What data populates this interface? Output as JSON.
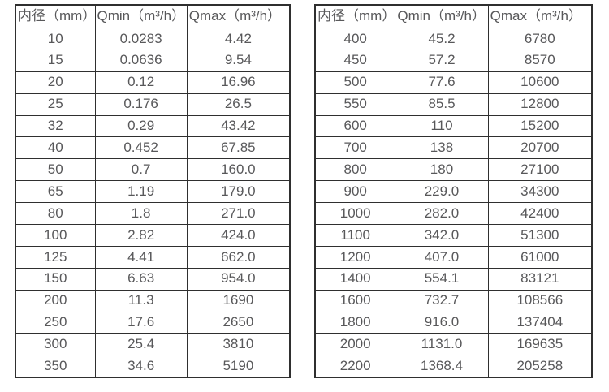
{
  "colors": {
    "background": "#ffffff",
    "border": "#2f2f2f",
    "text": "#58585a"
  },
  "tables": [
    {
      "name": "small-diameters",
      "headers": [
        "内径（mm）",
        "Qmin（m³/h）",
        "Qmax（m³/h）"
      ],
      "rows": [
        [
          "10",
          "0.0283",
          "4.42"
        ],
        [
          "15",
          "0.0636",
          "9.54"
        ],
        [
          "20",
          "0.12",
          "16.96"
        ],
        [
          "25",
          "0.176",
          "26.5"
        ],
        [
          "32",
          "0.29",
          "43.42"
        ],
        [
          "40",
          "0.452",
          "67.85"
        ],
        [
          "50",
          "0.7",
          "160.0"
        ],
        [
          "65",
          "1.19",
          "179.0"
        ],
        [
          "80",
          "1.8",
          "271.0"
        ],
        [
          "100",
          "2.82",
          "424.0"
        ],
        [
          "125",
          "4.41",
          "662.0"
        ],
        [
          "150",
          "6.63",
          "954.0"
        ],
        [
          "200",
          "11.3",
          "1690"
        ],
        [
          "250",
          "17.6",
          "2650"
        ],
        [
          "300",
          "25.4",
          "3810"
        ],
        [
          "350",
          "34.6",
          "5190"
        ]
      ]
    },
    {
      "name": "large-diameters",
      "headers": [
        "内径（mm）",
        "Qmin（m³/h）",
        "Qmax（m³/h）"
      ],
      "rows": [
        [
          "400",
          "45.2",
          "6780"
        ],
        [
          "450",
          "57.2",
          "8570"
        ],
        [
          "500",
          "77.6",
          "10600"
        ],
        [
          "550",
          "85.5",
          "12800"
        ],
        [
          "600",
          "110",
          "15200"
        ],
        [
          "700",
          "138",
          "20700"
        ],
        [
          "800",
          "180",
          "27100"
        ],
        [
          "900",
          "229.0",
          "34300"
        ],
        [
          "1000",
          "282.0",
          "42400"
        ],
        [
          "1100",
          "342.0",
          "51300"
        ],
        [
          "1200",
          "407.0",
          "61000"
        ],
        [
          "1400",
          "554.1",
          "83121"
        ],
        [
          "1600",
          "732.7",
          "108566"
        ],
        [
          "1800",
          "916.0",
          "137404"
        ],
        [
          "2000",
          "1131.0",
          "169635"
        ],
        [
          "2200",
          "1368.4",
          "205258"
        ]
      ]
    }
  ]
}
